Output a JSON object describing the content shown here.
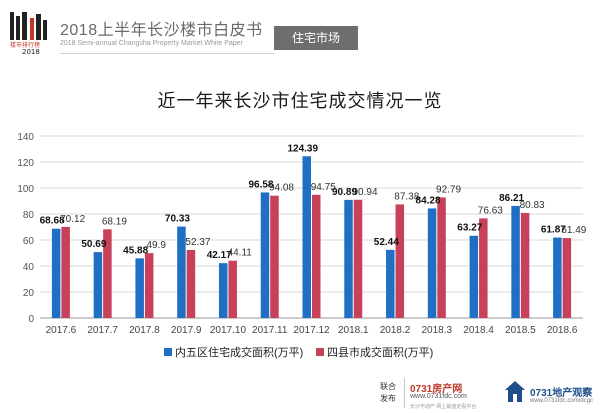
{
  "header": {
    "logo_text": "楼市排行榜",
    "logo_year": "2018",
    "title": "2018上半年长沙楼市白皮书",
    "subtitle": "2018 Semi-annual Changsha Property Market White Paper",
    "section_tab": "住宅市场"
  },
  "chart_data": {
    "type": "bar",
    "title": "近一年来长沙市住宅成交情况一览",
    "categories": [
      "2017.6",
      "2017.7",
      "2017.8",
      "2017.9",
      "2017.10",
      "2017.11",
      "2017.12",
      "2018.1",
      "2018.2",
      "2018.3",
      "2018.4",
      "2018.5",
      "2018.6"
    ],
    "series": [
      {
        "name": "内五区住宅成交面积(万平)",
        "color": "#1f6fc4",
        "values": [
          68.68,
          50.69,
          45.88,
          70.33,
          42.17,
          96.58,
          124.39,
          90.89,
          52.44,
          84.28,
          63.27,
          86.21,
          61.87
        ]
      },
      {
        "name": "四县市成交面积(万平)",
        "color": "#c8415a",
        "values": [
          70.12,
          68.19,
          49.9,
          52.37,
          44.11,
          94.08,
          94.75,
          90.94,
          87.38,
          92.79,
          76.63,
          80.83,
          61.49
        ]
      }
    ],
    "ylim": [
      0,
      140
    ],
    "yticks": [
      0,
      20,
      40,
      60,
      80,
      100,
      120,
      140
    ],
    "grid": true,
    "legend_position": "bottom"
  },
  "footer": {
    "joint_label": "联合发布",
    "brand1": "0731房产网",
    "url1": "www.0731fdc.com",
    "tagline1": "长沙不动产 网上最值定看平台",
    "brand2": "0731地产观察",
    "url2": "www.0731fdc.com/dcgc"
  }
}
